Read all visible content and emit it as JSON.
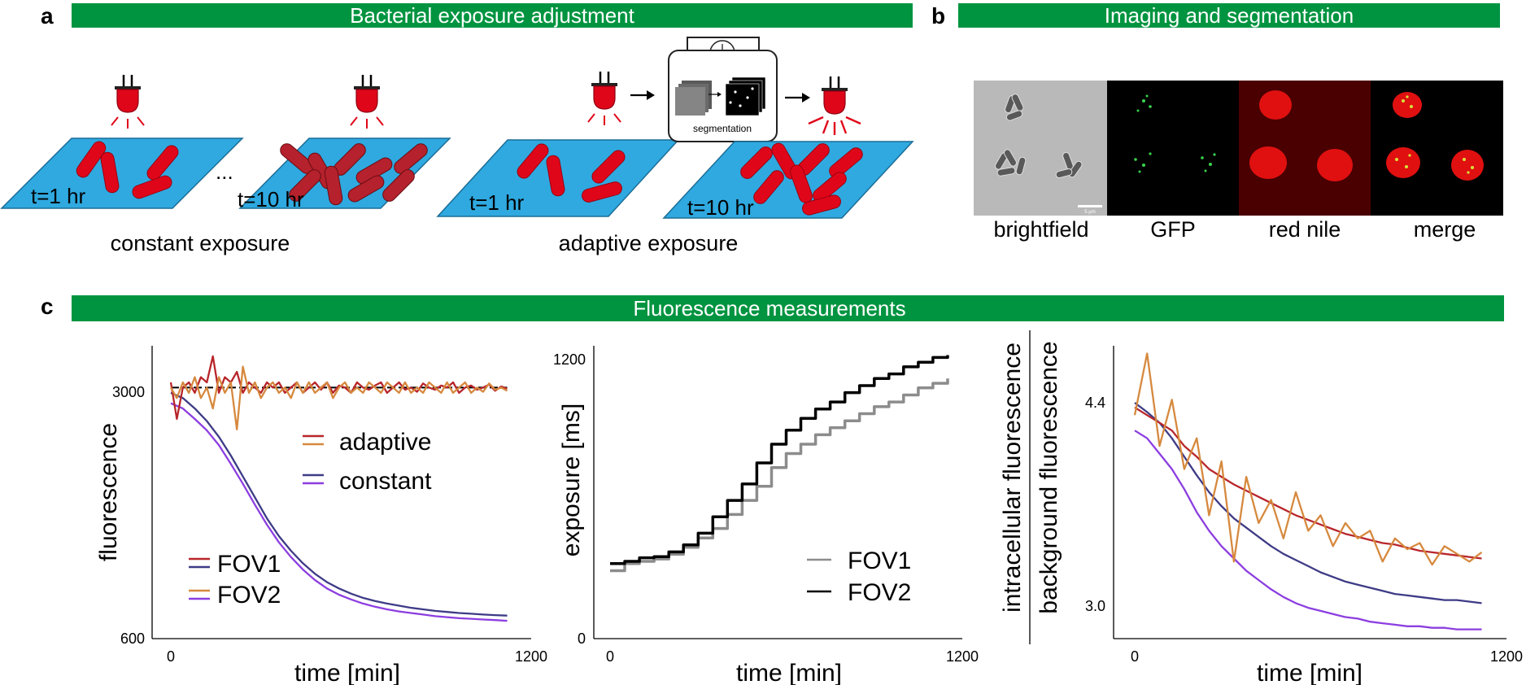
{
  "panel_a": {
    "letter": "a",
    "banner": "Bacterial exposure adjustment",
    "constant": {
      "plate1_time": "t=1 hr",
      "plate2_time": "t=10 hr",
      "ellipsis": "...",
      "caption": "constant exposure"
    },
    "adaptive": {
      "plate1_time": "t=1 hr",
      "plate2_time": "t=10 hr",
      "device_label": "segmentation",
      "caption": "adaptive exposure"
    }
  },
  "panel_b": {
    "letter": "b",
    "banner": "Imaging and segmentation",
    "channels": [
      "brightfield",
      "GFP",
      "red nile",
      "merge"
    ],
    "scale_bar_label": "5 µm"
  },
  "panel_c": {
    "letter": "c",
    "banner": "Fluorescence measurements"
  },
  "colors": {
    "banner_green": "#009440",
    "plate_blue": "#2fa9e0",
    "bacteria_red": "#e0061a",
    "bacteria_dark_red": "#b5212c",
    "lamp_red": "#e0061a",
    "adaptive_fov1": "#b8262b",
    "adaptive_fov2": "#d6893e",
    "constant_fov1": "#3e3b86",
    "constant_fov2": "#8c3ee0",
    "exposure_fov1": "#8c8c8c",
    "exposure_fov2": "#000000"
  },
  "chart_data": [
    {
      "type": "line",
      "title": "",
      "xlabel": "time [min]",
      "ylabel": "fluorescence",
      "xlim": [
        0,
        1200
      ],
      "ylim": [
        600,
        3400
      ],
      "xticks": [
        "0",
        "1200"
      ],
      "yticks": [
        "600",
        "3000"
      ],
      "reference_line": 3000,
      "legend": {
        "groups": [
          "adaptive",
          "constant"
        ],
        "fovs": [
          "FOV1",
          "FOV2"
        ]
      },
      "series": [
        {
          "name": "adaptive FOV1",
          "x": [
            0,
            20,
            40,
            60,
            80,
            100,
            120,
            140,
            160,
            180,
            200,
            220,
            240,
            260,
            280,
            300,
            320,
            340,
            360,
            380,
            400,
            420,
            440,
            460,
            480,
            500,
            520,
            540,
            560,
            580,
            600,
            620,
            640,
            660,
            680,
            700,
            720,
            740,
            760,
            780,
            800,
            820,
            840,
            860,
            880,
            900,
            920,
            940,
            960,
            980,
            1000,
            1020,
            1040,
            1060,
            1080,
            1100,
            1120
          ],
          "values": [
            3050,
            2700,
            3000,
            3050,
            2950,
            3100,
            3050,
            3300,
            2950,
            3100,
            3050,
            3150,
            2950,
            3050,
            3000,
            2950,
            3050,
            3000,
            3050,
            2950,
            3000,
            3050,
            2950,
            3000,
            3050,
            2980,
            3050,
            2950,
            3020,
            3000,
            2950,
            3050,
            3000,
            2980,
            3020,
            3050,
            2950,
            3000,
            3050,
            2980,
            3000,
            2960,
            3040,
            3000,
            2980,
            3020,
            3000,
            3050,
            2950,
            3000,
            3020,
            2980,
            3000,
            3030,
            2970,
            3010,
            2990
          ]
        },
        {
          "name": "adaptive FOV2",
          "x": [
            0,
            20,
            40,
            60,
            80,
            100,
            120,
            140,
            160,
            180,
            200,
            220,
            240,
            260,
            280,
            300,
            320,
            340,
            360,
            380,
            400,
            420,
            440,
            460,
            480,
            500,
            520,
            540,
            560,
            580,
            600,
            620,
            640,
            660,
            680,
            700,
            720,
            740,
            760,
            780,
            800,
            820,
            840,
            860,
            880,
            900,
            920,
            940,
            960,
            980,
            1000,
            1020,
            1040,
            1060,
            1080,
            1100,
            1120
          ],
          "values": [
            3000,
            2900,
            3050,
            2950,
            3100,
            2900,
            3000,
            2800,
            3100,
            2950,
            3050,
            2600,
            3200,
            2950,
            3050,
            2900,
            3000,
            3050,
            2950,
            3000,
            2900,
            3050,
            2950,
            3050,
            2950,
            3000,
            3050,
            2900,
            3000,
            3050,
            2950,
            3000,
            2950,
            3050,
            3000,
            2950,
            3050,
            3000,
            2950,
            3050,
            2950,
            3000,
            2950,
            3050,
            3000,
            2950,
            3050,
            2950,
            3000,
            3050,
            2950,
            3000,
            2960,
            3040,
            2980,
            3000,
            2970
          ]
        },
        {
          "name": "constant FOV1",
          "x": [
            0,
            40,
            80,
            120,
            160,
            200,
            240,
            280,
            320,
            360,
            400,
            440,
            480,
            520,
            560,
            600,
            640,
            680,
            720,
            760,
            800,
            840,
            880,
            920,
            960,
            1000,
            1040,
            1080,
            1120
          ],
          "values": [
            2950,
            2900,
            2800,
            2680,
            2530,
            2350,
            2150,
            1950,
            1750,
            1580,
            1440,
            1320,
            1220,
            1140,
            1080,
            1030,
            990,
            960,
            935,
            915,
            895,
            880,
            865,
            855,
            845,
            838,
            830,
            825,
            820
          ]
        },
        {
          "name": "constant FOV2",
          "x": [
            0,
            40,
            80,
            120,
            160,
            200,
            240,
            280,
            320,
            360,
            400,
            440,
            480,
            520,
            560,
            600,
            640,
            680,
            720,
            760,
            800,
            840,
            880,
            920,
            960,
            1000,
            1040,
            1080,
            1120
          ],
          "values": [
            2850,
            2800,
            2700,
            2590,
            2450,
            2270,
            2080,
            1880,
            1690,
            1520,
            1380,
            1260,
            1160,
            1080,
            1020,
            975,
            935,
            905,
            880,
            860,
            845,
            830,
            815,
            805,
            795,
            790,
            783,
            777,
            770
          ]
        }
      ]
    },
    {
      "type": "line",
      "title": "",
      "xlabel": "time [min]",
      "ylabel": "exposure [ms]",
      "xlim": [
        0,
        1200
      ],
      "ylim": [
        0,
        1250
      ],
      "xticks": [
        "0",
        "1200"
      ],
      "yticks": [
        "0",
        "1200"
      ],
      "series": [
        {
          "name": "FOV1",
          "x": [
            0,
            50,
            100,
            150,
            200,
            250,
            300,
            350,
            400,
            450,
            500,
            550,
            600,
            650,
            700,
            750,
            800,
            850,
            900,
            950,
            1000,
            1050,
            1100,
            1150
          ],
          "values": [
            290,
            320,
            330,
            340,
            360,
            390,
            430,
            470,
            530,
            590,
            650,
            730,
            790,
            830,
            870,
            900,
            930,
            960,
            990,
            1010,
            1040,
            1070,
            1090,
            1110
          ]
        },
        {
          "name": "FOV2",
          "x": [
            0,
            50,
            100,
            150,
            200,
            250,
            300,
            350,
            400,
            450,
            500,
            550,
            600,
            650,
            700,
            750,
            800,
            850,
            900,
            950,
            1000,
            1050,
            1100,
            1150
          ],
          "values": [
            320,
            330,
            345,
            350,
            370,
            400,
            450,
            520,
            590,
            660,
            750,
            830,
            890,
            940,
            980,
            1010,
            1050,
            1080,
            1110,
            1130,
            1160,
            1180,
            1200,
            1210
          ]
        }
      ],
      "legend": [
        "FOV1",
        "FOV2"
      ]
    },
    {
      "type": "line",
      "title": "",
      "xlabel": "time [min]",
      "ylabel": [
        "intracellular fluorescence",
        "background fluorescence"
      ],
      "xlim": [
        0,
        1200
      ],
      "ylim": [
        2.8,
        4.7
      ],
      "xticks": [
        "0",
        "1200"
      ],
      "yticks": [
        "3.0",
        "4.4"
      ],
      "series": [
        {
          "name": "adaptive FOV1",
          "x": [
            0,
            40,
            80,
            120,
            160,
            200,
            240,
            280,
            320,
            360,
            400,
            440,
            480,
            520,
            560,
            600,
            640,
            680,
            720,
            760,
            800,
            840,
            880,
            920,
            960,
            1000,
            1040,
            1080,
            1120
          ],
          "values": [
            4.3,
            4.25,
            4.2,
            4.15,
            4.05,
            3.98,
            3.9,
            3.85,
            3.8,
            3.76,
            3.72,
            3.68,
            3.64,
            3.6,
            3.57,
            3.54,
            3.51,
            3.48,
            3.46,
            3.44,
            3.42,
            3.41,
            3.39,
            3.37,
            3.36,
            3.35,
            3.34,
            3.33,
            3.32
          ]
        },
        {
          "name": "adaptive FOV2",
          "x": [
            0,
            40,
            80,
            120,
            160,
            200,
            240,
            280,
            320,
            360,
            400,
            440,
            480,
            520,
            560,
            600,
            640,
            680,
            720,
            760,
            800,
            840,
            880,
            920,
            960,
            1000,
            1040,
            1080,
            1120
          ],
          "values": [
            4.25,
            4.65,
            4.05,
            4.35,
            3.9,
            4.1,
            3.6,
            3.95,
            3.3,
            3.85,
            3.55,
            3.7,
            3.45,
            3.75,
            3.5,
            3.6,
            3.4,
            3.55,
            3.45,
            3.5,
            3.3,
            3.45,
            3.38,
            3.42,
            3.28,
            3.4,
            3.35,
            3.3,
            3.36
          ]
        },
        {
          "name": "constant FOV1",
          "x": [
            0,
            40,
            80,
            120,
            160,
            200,
            240,
            280,
            320,
            360,
            400,
            440,
            480,
            520,
            560,
            600,
            640,
            680,
            720,
            760,
            800,
            840,
            880,
            920,
            960,
            1000,
            1040,
            1080,
            1120
          ],
          "values": [
            4.33,
            4.27,
            4.2,
            4.1,
            3.98,
            3.86,
            3.75,
            3.66,
            3.58,
            3.52,
            3.46,
            3.4,
            3.35,
            3.31,
            3.27,
            3.23,
            3.2,
            3.17,
            3.15,
            3.13,
            3.11,
            3.09,
            3.08,
            3.07,
            3.06,
            3.05,
            3.05,
            3.04,
            3.03
          ]
        },
        {
          "name": "constant FOV2",
          "x": [
            0,
            40,
            80,
            120,
            160,
            200,
            240,
            280,
            320,
            360,
            400,
            440,
            480,
            520,
            560,
            600,
            640,
            680,
            720,
            760,
            800,
            840,
            880,
            920,
            960,
            1000,
            1040,
            1080,
            1120
          ],
          "values": [
            4.15,
            4.1,
            4.0,
            3.9,
            3.77,
            3.62,
            3.5,
            3.4,
            3.32,
            3.24,
            3.18,
            3.12,
            3.07,
            3.03,
            3.0,
            2.98,
            2.96,
            2.94,
            2.93,
            2.91,
            2.9,
            2.89,
            2.88,
            2.88,
            2.87,
            2.87,
            2.86,
            2.86,
            2.86
          ]
        }
      ]
    }
  ]
}
